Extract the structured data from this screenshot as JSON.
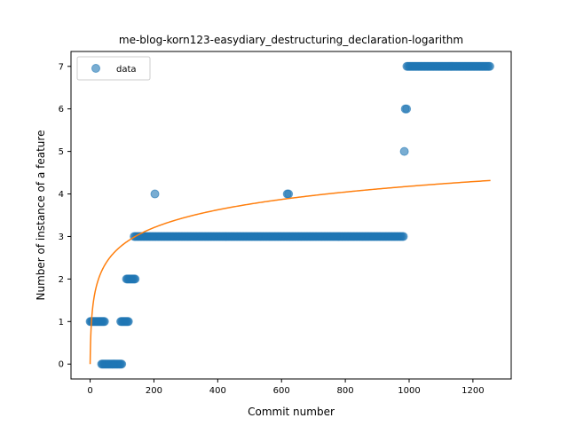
{
  "chart_data": {
    "type": "scatter",
    "title": "me-blog-korn123-easydiary_destructuring_declaration-logarithm",
    "xlabel": "Commit number",
    "ylabel": "Number of instance of a feature",
    "xlim": [
      -60,
      1320
    ],
    "ylim": [
      -0.35,
      7.35
    ],
    "xticks": [
      0,
      200,
      400,
      600,
      800,
      1000,
      1200
    ],
    "yticks": [
      0,
      1,
      2,
      3,
      4,
      5,
      6,
      7
    ],
    "grid": false,
    "legend": {
      "position": "upper-left",
      "entries": [
        "data"
      ]
    },
    "colors": {
      "scatter": "#1f77b4",
      "fit": "#ff7f0e"
    },
    "series": [
      {
        "name": "data",
        "kind": "scatter",
        "segments": [
          {
            "y": 1,
            "x_from": 0,
            "x_to": 45,
            "step": 3
          },
          {
            "y": 0,
            "x_from": 36,
            "x_to": 100,
            "step": 3
          },
          {
            "y": 1,
            "x_from": 96,
            "x_to": 122,
            "step": 3
          },
          {
            "y": 2,
            "x_from": 114,
            "x_to": 143,
            "step": 3
          },
          {
            "y": 3,
            "x_from": 138,
            "x_to": 985,
            "step": 4
          },
          {
            "y": 7,
            "x_from": 993,
            "x_to": 1255,
            "step": 4
          }
        ],
        "points": [
          {
            "x": 203,
            "y": 4
          },
          {
            "x": 618,
            "y": 4
          },
          {
            "x": 622,
            "y": 4
          },
          {
            "x": 985,
            "y": 5
          },
          {
            "x": 988,
            "y": 6
          },
          {
            "x": 992,
            "y": 6
          }
        ]
      },
      {
        "name": "",
        "kind": "line",
        "function": "a*ln(x+1)",
        "a": 0.605,
        "x_from": 0,
        "x_to": 1255
      }
    ]
  }
}
